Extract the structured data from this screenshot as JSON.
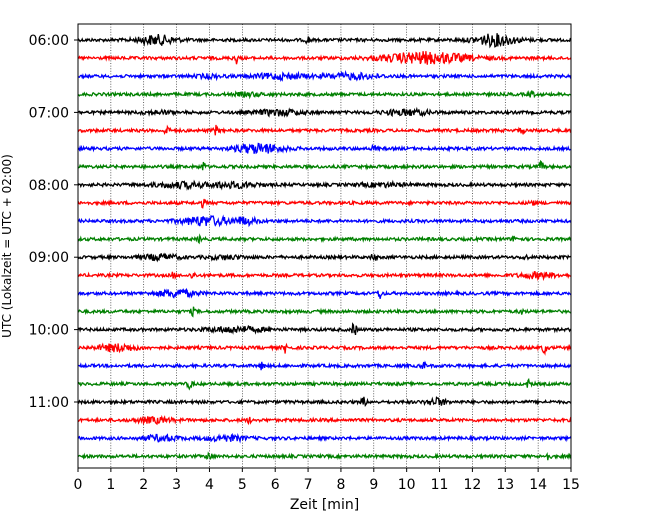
{
  "chart_data": {
    "type": "line",
    "subtype": "helicorder",
    "xlabel": "Zeit  [min]",
    "ylabel": "UTC (Lokalzeit = UTC + 02:00)",
    "xlim": [
      0,
      15
    ],
    "x_ticks": [
      "0",
      "1",
      "2",
      "3",
      "4",
      "5",
      "6",
      "7",
      "8",
      "9",
      "10",
      "11",
      "12",
      "13",
      "14",
      "15"
    ],
    "y_tick_labels": [
      "06:00",
      "07:00",
      "08:00",
      "09:00",
      "10:00",
      "11:00"
    ],
    "grid": "vertical-dotted",
    "trace_colors": [
      "#000000",
      "#ff0000",
      "#0000ff",
      "#008000"
    ],
    "traces": [
      {
        "start": "06:00",
        "events": [
          {
            "t": 2.4,
            "a": 6,
            "w": 0.4
          },
          {
            "t": 7.0,
            "a": 5,
            "w": 0.05
          },
          {
            "t": 12.7,
            "a": 7,
            "w": 0.45
          }
        ]
      },
      {
        "start": "06:15",
        "events": [
          {
            "t": 4.8,
            "a": 7,
            "w": 0.05
          },
          {
            "t": 10.6,
            "a": 7,
            "w": 0.9
          }
        ]
      },
      {
        "start": "06:30",
        "events": [
          {
            "t": 4.0,
            "a": 3,
            "w": 0.3
          },
          {
            "t": 6.2,
            "a": 4,
            "w": 0.6
          },
          {
            "t": 8.3,
            "a": 4,
            "w": 0.6
          }
        ]
      },
      {
        "start": "06:45",
        "events": [
          {
            "t": 5.2,
            "a": 3,
            "w": 0.3
          },
          {
            "t": 13.8,
            "a": 5,
            "w": 0.05
          }
        ]
      },
      {
        "start": "07:00",
        "events": [
          {
            "t": 2.4,
            "a": 3,
            "w": 0.3
          },
          {
            "t": 6.1,
            "a": 4,
            "w": 0.5
          },
          {
            "t": 10.0,
            "a": 4,
            "w": 0.5
          }
        ]
      },
      {
        "start": "07:15",
        "events": [
          {
            "t": 2.7,
            "a": 6,
            "w": 0.05
          },
          {
            "t": 4.2,
            "a": 6,
            "w": 0.05
          },
          {
            "t": 13.5,
            "a": 5,
            "w": 0.05
          }
        ]
      },
      {
        "start": "07:30",
        "events": [
          {
            "t": 5.5,
            "a": 6,
            "w": 0.5
          },
          {
            "t": 9.0,
            "a": 4,
            "w": 0.05
          }
        ]
      },
      {
        "start": "07:45",
        "events": [
          {
            "t": 3.8,
            "a": 6,
            "w": 0.05
          },
          {
            "t": 14.1,
            "a": 6,
            "w": 0.05
          }
        ]
      },
      {
        "start": "08:00",
        "events": [
          {
            "t": 3.2,
            "a": 4,
            "w": 0.6
          },
          {
            "t": 4.6,
            "a": 4,
            "w": 0.6
          },
          {
            "t": 9.3,
            "a": 3,
            "w": 0.5
          }
        ]
      },
      {
        "start": "08:15",
        "events": [
          {
            "t": 3.8,
            "a": 5,
            "w": 0.05
          },
          {
            "t": 13.8,
            "a": 5,
            "w": 0.05
          }
        ]
      },
      {
        "start": "08:30",
        "events": [
          {
            "t": 3.9,
            "a": 6,
            "w": 0.5
          },
          {
            "t": 5.0,
            "a": 5,
            "w": 0.3
          }
        ]
      },
      {
        "start": "08:45",
        "events": [
          {
            "t": 3.7,
            "a": 4,
            "w": 0.05
          },
          {
            "t": 13.3,
            "a": 5,
            "w": 0.05
          }
        ]
      },
      {
        "start": "09:00",
        "events": [
          {
            "t": 2.5,
            "a": 4,
            "w": 0.4
          },
          {
            "t": 4.5,
            "a": 3,
            "w": 0.4
          },
          {
            "t": 9.0,
            "a": 6,
            "w": 0.05
          },
          {
            "t": 13.6,
            "a": 4,
            "w": 0.05
          }
        ]
      },
      {
        "start": "09:15",
        "events": [
          {
            "t": 2.9,
            "a": 4,
            "w": 0.05
          },
          {
            "t": 3.5,
            "a": 5,
            "w": 0.05
          },
          {
            "t": 14.0,
            "a": 4,
            "w": 0.4
          }
        ]
      },
      {
        "start": "09:30",
        "events": [
          {
            "t": 3.0,
            "a": 5,
            "w": 0.4
          },
          {
            "t": 9.2,
            "a": 7,
            "w": 0.05
          }
        ]
      },
      {
        "start": "09:45",
        "events": [
          {
            "t": 3.5,
            "a": 5,
            "w": 0.05
          },
          {
            "t": 13.5,
            "a": 4,
            "w": 0.05
          }
        ]
      },
      {
        "start": "10:00",
        "events": [
          {
            "t": 4.8,
            "a": 4,
            "w": 0.6
          },
          {
            "t": 8.4,
            "a": 8,
            "w": 0.05
          }
        ]
      },
      {
        "start": "10:15",
        "events": [
          {
            "t": 1.2,
            "a": 5,
            "w": 0.4
          },
          {
            "t": 6.3,
            "a": 6,
            "w": 0.05
          },
          {
            "t": 14.2,
            "a": 7,
            "w": 0.05
          }
        ]
      },
      {
        "start": "10:30",
        "events": [
          {
            "t": 5.6,
            "a": 5,
            "w": 0.05
          },
          {
            "t": 10.5,
            "a": 5,
            "w": 0.05
          }
        ]
      },
      {
        "start": "10:45",
        "events": [
          {
            "t": 3.4,
            "a": 6,
            "w": 0.05
          },
          {
            "t": 13.7,
            "a": 5,
            "w": 0.05
          }
        ]
      },
      {
        "start": "11:00",
        "events": [
          {
            "t": 8.7,
            "a": 6,
            "w": 0.05
          },
          {
            "t": 10.9,
            "a": 5,
            "w": 0.2
          }
        ]
      },
      {
        "start": "11:15",
        "events": [
          {
            "t": 2.3,
            "a": 4,
            "w": 0.4
          },
          {
            "t": 5.2,
            "a": 4,
            "w": 0.05
          }
        ]
      },
      {
        "start": "11:30",
        "events": [
          {
            "t": 2.5,
            "a": 4,
            "w": 0.4
          },
          {
            "t": 4.5,
            "a": 4,
            "w": 0.4
          }
        ]
      },
      {
        "start": "11:45",
        "events": [
          {
            "t": 4.0,
            "a": 7,
            "w": 0.05
          },
          {
            "t": 14.3,
            "a": 5,
            "w": 0.05
          }
        ]
      }
    ]
  }
}
